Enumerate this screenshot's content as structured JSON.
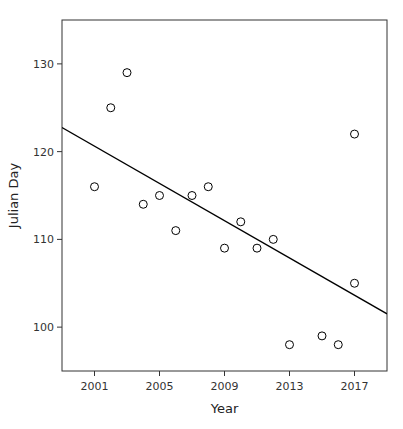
{
  "chart_data": {
    "type": "scatter",
    "xlabel": "Year",
    "ylabel": "Julian Day",
    "series": [
      {
        "type": "scatter",
        "color": "#000000",
        "marker": "circle",
        "x": [
          2001,
          2002,
          2003,
          2004,
          2005,
          2006,
          2007,
          2008,
          2009,
          2010,
          2011,
          2012,
          2013,
          2015,
          2016,
          2017,
          2017
        ],
        "values": [
          116,
          125,
          129,
          114,
          115,
          111,
          115,
          116,
          109,
          112,
          109,
          110,
          98,
          99,
          98,
          105,
          122
        ]
      },
      {
        "type": "line",
        "color": "#000000",
        "line_style": "solid",
        "x": [
          1999,
          2019
        ],
        "values": [
          122.741106719,
          101.515810279
        ]
      }
    ],
    "xlim": [
      1999,
      2019
    ],
    "ylim": [
      95,
      135
    ],
    "xticks": [
      2001,
      2005,
      2009,
      2013,
      2017
    ],
    "yticks": [
      100,
      110,
      120,
      130
    ],
    "grid": false
  }
}
